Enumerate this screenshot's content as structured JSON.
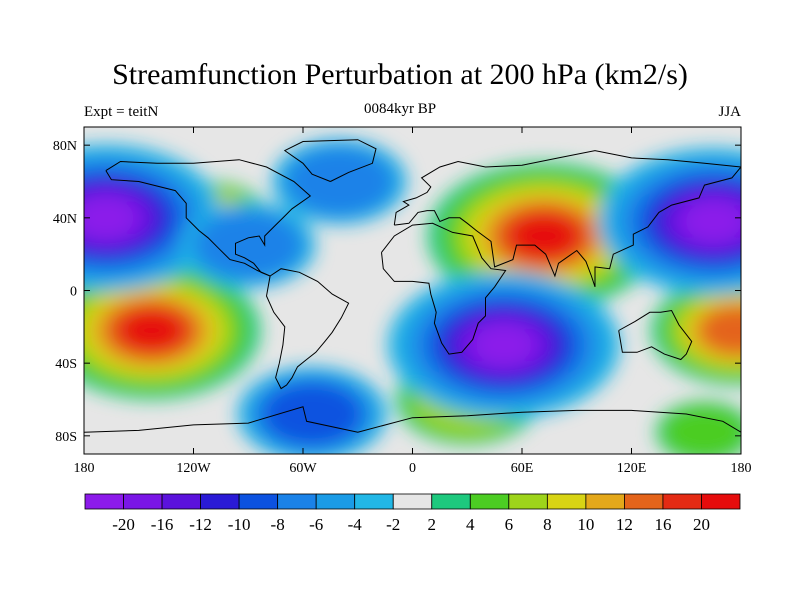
{
  "header": {
    "title": "Streamfunction Perturbation at 200 hPa (km2/s)",
    "subtitle_center": "0084kyr BP",
    "subtitle_left": "Expt = teitN",
    "subtitle_right": "JJA"
  },
  "map": {
    "projection": "cylindrical equidistant",
    "lon_range": [
      -180,
      180
    ],
    "lat_range": [
      -90,
      90
    ],
    "lon_ticks": [
      {
        "value": -180,
        "label": "180"
      },
      {
        "value": -120,
        "label": "120W"
      },
      {
        "value": -60,
        "label": "60W"
      },
      {
        "value": 0,
        "label": "0"
      },
      {
        "value": 60,
        "label": "60E"
      },
      {
        "value": 120,
        "label": "120E"
      },
      {
        "value": 180,
        "label": "180"
      }
    ],
    "lat_ticks": [
      {
        "value": 80,
        "label": "80N"
      },
      {
        "value": 40,
        "label": "40N"
      },
      {
        "value": 0,
        "label": "0"
      },
      {
        "value": -40,
        "label": "40S"
      },
      {
        "value": -80,
        "label": "80S"
      }
    ],
    "anomaly_centers": [
      {
        "lon": 72,
        "lat": 30,
        "value": 22,
        "sign": "positive"
      },
      {
        "lon": -143,
        "lat": -22,
        "value": 20,
        "sign": "positive"
      },
      {
        "lon": 178,
        "lat": -22,
        "value": 14,
        "sign": "positive"
      },
      {
        "lon": -110,
        "lat": 40,
        "value": 9,
        "sign": "positive"
      },
      {
        "lon": 30,
        "lat": -60,
        "value": 7,
        "sign": "positive"
      },
      {
        "lon": 160,
        "lat": -78,
        "value": 4,
        "sign": "positive"
      },
      {
        "lon": -168,
        "lat": 40,
        "value": -22,
        "sign": "negative"
      },
      {
        "lon": 165,
        "lat": 38,
        "value": -22,
        "sign": "negative"
      },
      {
        "lon": 50,
        "lat": -30,
        "value": -22,
        "sign": "negative"
      },
      {
        "lon": -55,
        "lat": -68,
        "value": -8,
        "sign": "negative"
      },
      {
        "lon": -40,
        "lat": 60,
        "value": -6,
        "sign": "negative"
      },
      {
        "lon": -90,
        "lat": 25,
        "value": -6,
        "sign": "negative"
      }
    ]
  },
  "colorbar": {
    "colors": [
      "#8c1aea",
      "#7a16e6",
      "#5b12dc",
      "#2a1ad6",
      "#0c52e0",
      "#1a82e8",
      "#1a9be6",
      "#22b7e6",
      "#e6e6e6",
      "#1ec97e",
      "#4ccd23",
      "#9ed41a",
      "#d8d414",
      "#e4a81a",
      "#e4641a",
      "#e42b14",
      "#e60c0c"
    ],
    "labels": [
      "-20",
      "-16",
      "-12",
      "-10",
      "-8",
      "-6",
      "-4",
      "-2",
      "2",
      "4",
      "6",
      "8",
      "10",
      "12",
      "16",
      "20"
    ]
  }
}
